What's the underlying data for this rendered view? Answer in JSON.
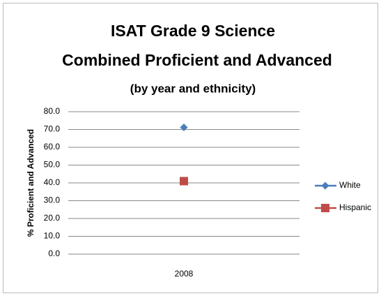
{
  "chart_data": {
    "type": "line",
    "title": [
      "ISAT Grade 9 Science",
      "Combined Proficient and Advanced"
    ],
    "subtitle": "(by year and ethnicity)",
    "y_label": "% Proficient and Advanced",
    "categories": [
      "2008"
    ],
    "series": [
      {
        "name": "White",
        "color": "#4a7ebb",
        "marker": "diamond",
        "values": [
          71.2
        ]
      },
      {
        "name": "Hispanic",
        "color": "#be4b48",
        "marker": "square",
        "values": [
          41.0
        ]
      }
    ],
    "ylim": [
      0,
      80
    ],
    "yticks": [
      {
        "value": 0,
        "label": "0.0"
      },
      {
        "value": 10,
        "label": "10.0"
      },
      {
        "value": 20,
        "label": "20.0"
      },
      {
        "value": 30,
        "label": "30.0"
      },
      {
        "value": 40,
        "label": "40.0"
      },
      {
        "value": 50,
        "label": "50.0"
      },
      {
        "value": 60,
        "label": "60.0"
      },
      {
        "value": 70,
        "label": "70.0"
      },
      {
        "value": 80,
        "label": "80.0"
      }
    ],
    "grid": true,
    "legend": "right"
  }
}
